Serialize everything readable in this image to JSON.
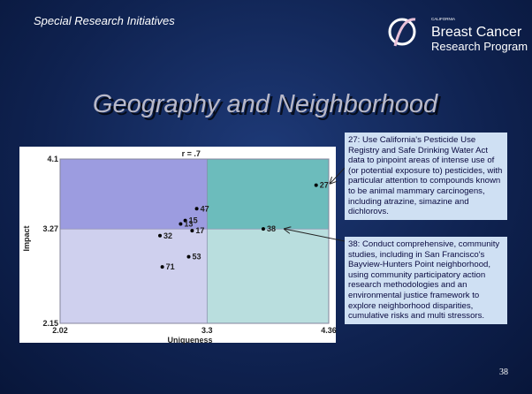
{
  "header": "Special Research Initiatives",
  "logo": {
    "small": "CALIFORNIA",
    "line1": "Breast Cancer",
    "line2": "Research Program"
  },
  "page_number": "38",
  "notes": [
    "27:  Use California's Pesticide Use Registry and Safe Drinking Water Act data to pinpoint areas of intense use of (or potential exposure to) pesticides, with particular attention to compounds known to be animal mammary carcinogens, including atrazine, simazine and dichlorovs.",
    "38:  Conduct comprehensive, community studies, including in San Francisco's Bayview-Hunters Point neighborhood, using community participatory action research methodologies and an environmental justice framework to explore neighborhood disparities, cumulative risks and multi stressors."
  ],
  "chart_data": {
    "type": "scatter",
    "title": "Geography and Neighborhood",
    "annotation": "r = .7",
    "x_label": "Uniqueness",
    "y_label": "Impact",
    "xlim": [
      2.02,
      4.36
    ],
    "ylim": [
      2.15,
      4.1
    ],
    "xticks": [
      2.02,
      3.3,
      4.36
    ],
    "yticks": [
      2.15,
      3.27,
      4.1
    ],
    "quadrant_colors": {
      "top_left": "#9c9ce0",
      "top_right": "#6cbcbc",
      "bottom_left": "#cfd0ee",
      "bottom_right": "#b9dede"
    },
    "point_color": "#000000",
    "labels": [
      "27",
      "38",
      "47",
      "15",
      "13",
      "17",
      "32",
      "53",
      "71"
    ],
    "x": [
      4.25,
      3.79,
      3.21,
      3.11,
      3.07,
      3.17,
      2.89,
      3.14,
      2.91
    ],
    "values": [
      3.79,
      3.27,
      3.51,
      3.37,
      3.33,
      3.25,
      3.19,
      2.94,
      2.82
    ]
  }
}
